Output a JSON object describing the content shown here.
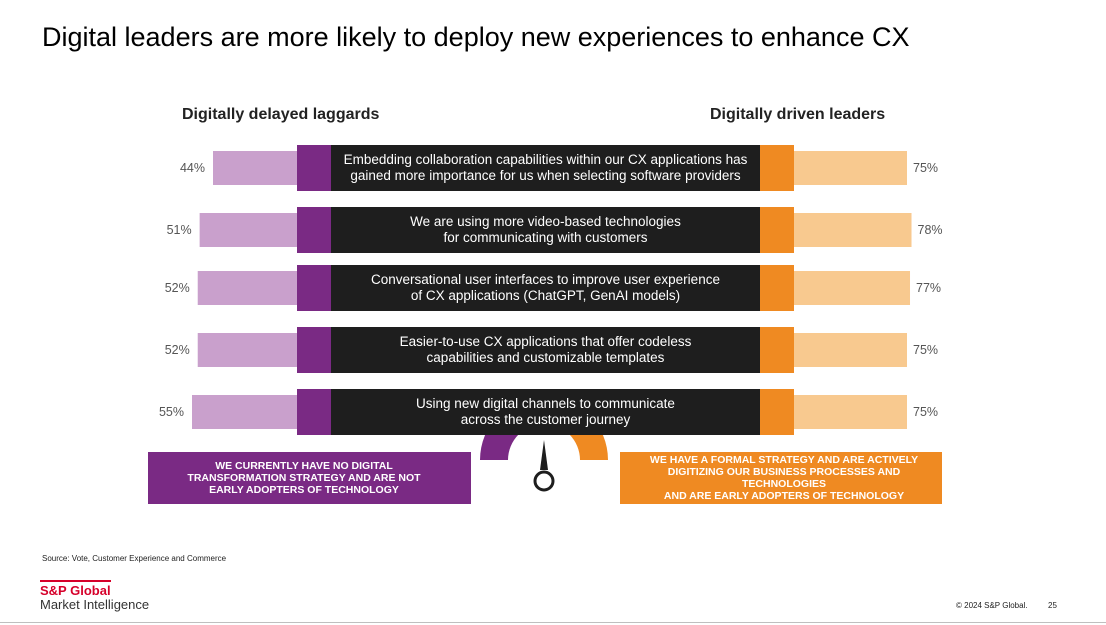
{
  "slide": {
    "title": "Digital leaders are more likely to deploy new experiences to enhance CX",
    "source": "Source: Vote, Customer Experience and Commerce",
    "logo_line1": "S&P Global",
    "logo_line2": "Market Intelligence",
    "copyright": "© 2024 S&P Global.",
    "page_number": "25"
  },
  "chart_data": {
    "type": "bar",
    "layout": "butterfly",
    "title": "Digital leaders are more likely to deploy new experiences to enhance CX",
    "left_header": "Digitally delayed laggards",
    "right_header": "Digitally driven leaders",
    "categories": [
      [
        "Embedding collaboration capabilities within our CX applications has",
        "gained more importance for us when selecting software providers"
      ],
      [
        "We are using more video-based technologies",
        "for communicating with customers"
      ],
      [
        "Conversational user interfaces to improve user experience",
        "of CX applications (ChatGPT, GenAI models)"
      ],
      [
        "Easier-to-use CX applications that offer codeless",
        "capabilities and customizable templates"
      ],
      [
        "Using new digital channels to communicate",
        "across the customer journey"
      ]
    ],
    "series": [
      {
        "name": "Digitally delayed laggards",
        "values": [
          44,
          51,
          52,
          52,
          55
        ],
        "labels": [
          "44%",
          "51%",
          "52%",
          "52%",
          "55%"
        ]
      },
      {
        "name": "Digitally driven leaders",
        "values": [
          75,
          78,
          77,
          75,
          75
        ],
        "labels": [
          "75%",
          "78%",
          "77%",
          "75%",
          "75%"
        ]
      }
    ],
    "left_caption": [
      "WE CURRENTLY HAVE NO DIGITAL",
      "TRANSFORMATION STRATEGY AND ARE NOT",
      "EARLY ADOPTERS OF TECHNOLOGY"
    ],
    "right_caption": [
      "WE HAVE A FORMAL STRATEGY AND ARE ACTIVELY",
      "DIGITIZING OUR BUSINESS PROCESSES AND TECHNOLOGIES",
      "AND ARE EARLY ADOPTERS OF TECHNOLOGY"
    ]
  },
  "colors": {
    "laggard_bar": "#c9a0cc",
    "laggard_accent": "#7a2a84",
    "leader_bar": "#f8c98f",
    "leader_accent": "#ef8a22",
    "center_band": "#1e1e1e",
    "label_text": "#555555",
    "needle": "#1e1e1e"
  }
}
